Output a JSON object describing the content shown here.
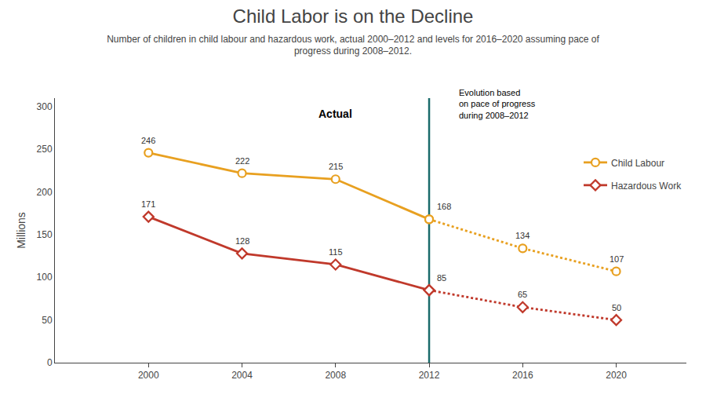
{
  "chart_data": {
    "type": "line",
    "title": "Child Labor is on the Decline",
    "subtitle": "Number of children in child labour and hazardous work, actual 2000–2012 and levels for 2016–2020 assuming pace of\nprogress during 2008–2012.",
    "ylabel": "Millions",
    "series": [
      {
        "name": "Child Labour",
        "color": "#e8a020",
        "marker": "circle",
        "line_style": "solid",
        "x": [
          2000,
          2004,
          2008,
          2012
        ],
        "values": [
          246,
          222,
          215,
          168
        ]
      },
      {
        "name": "Hazardous Work",
        "color": "#c0392b",
        "marker": "diamond",
        "line_style": "solid",
        "x": [
          2000,
          2004,
          2008,
          2012
        ],
        "values": [
          171,
          128,
          115,
          85
        ]
      },
      {
        "name": "Child Labour",
        "color": "#e8a020",
        "marker": "circle",
        "line_style": "dotted",
        "x": [
          2012,
          2016,
          2020
        ],
        "values": [
          168,
          134,
          107
        ]
      },
      {
        "name": "Hazardous Work",
        "color": "#c0392b",
        "marker": "diamond",
        "line_style": "dotted",
        "x": [
          2012,
          2016,
          2020
        ],
        "values": [
          85,
          65,
          50
        ]
      }
    ],
    "data_labels": true,
    "vlines": [
      {
        "x": 2012,
        "color": "#1a6b6b"
      }
    ],
    "annotations": [
      {
        "text": "Actual",
        "x": 2008,
        "y": 282
      },
      {
        "text": "Evolution based\non pace of progress\nduring 2008–2012",
        "x": 2013.2,
        "y": 282
      }
    ],
    "xlim": [
      1996,
      2023
    ],
    "ylim": [
      0,
      310
    ],
    "xticks": [
      2000,
      2004,
      2008,
      2012,
      2016,
      2020
    ],
    "yticks": [
      0,
      50,
      100,
      150,
      200,
      250,
      300
    ],
    "grid": false,
    "legend": "upper right"
  }
}
